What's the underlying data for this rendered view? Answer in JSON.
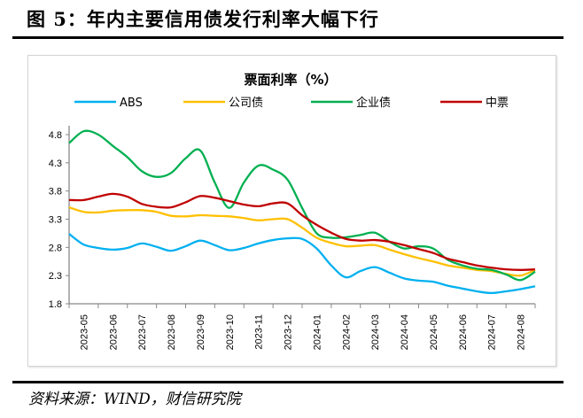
{
  "title": "图 5：年内主要信用债发行利率大幅下行",
  "source": "资料来源：WIND，财信研究院",
  "chart_data": {
    "type": "line",
    "title": "票面利率（%）",
    "xlabel": "",
    "ylabel": "",
    "categories": [
      "2023-05",
      "2023-06",
      "2023-07",
      "2023-08",
      "2023-09",
      "2023-10",
      "2023-11",
      "2023-12",
      "2024-01",
      "2024-02",
      "2024-03",
      "2024-04",
      "2024-05",
      "2024-06",
      "2024-07",
      "2024-08"
    ],
    "x": [
      "2023-05-01",
      "2023-05-16",
      "2023-06-01",
      "2023-06-16",
      "2023-07-01",
      "2023-07-16",
      "2023-08-01",
      "2023-08-16",
      "2023-09-01",
      "2023-09-16",
      "2023-10-01",
      "2023-10-16",
      "2023-11-01",
      "2023-11-16",
      "2023-12-01",
      "2023-12-16",
      "2024-01-01",
      "2024-01-16",
      "2024-02-01",
      "2024-02-16",
      "2024-03-01",
      "2024-03-16",
      "2024-04-01",
      "2024-04-16",
      "2024-05-01",
      "2024-05-16",
      "2024-06-01",
      "2024-06-16",
      "2024-07-01",
      "2024-07-16",
      "2024-08-01",
      "2024-08-16",
      "2024-09-01"
    ],
    "yticks": [
      "1.8",
      "2.3",
      "2.8",
      "3.3",
      "3.8",
      "4.3",
      "4.8"
    ],
    "ylim": [
      1.8,
      4.8
    ],
    "grid": false,
    "legend": "top",
    "series": [
      {
        "name": "ABS",
        "color": "#00B0F0",
        "values": [
          3.04,
          2.85,
          2.79,
          2.76,
          2.79,
          2.87,
          2.81,
          2.74,
          2.82,
          2.92,
          2.84,
          2.75,
          2.79,
          2.87,
          2.93,
          2.96,
          2.95,
          2.78,
          2.48,
          2.27,
          2.38,
          2.45,
          2.35,
          2.25,
          2.21,
          2.19,
          2.12,
          2.07,
          2.02,
          1.99,
          2.02,
          2.06,
          2.11
        ]
      },
      {
        "name": "公司债",
        "color": "#FFC000",
        "values": [
          3.51,
          3.43,
          3.42,
          3.45,
          3.46,
          3.46,
          3.43,
          3.36,
          3.35,
          3.37,
          3.36,
          3.35,
          3.32,
          3.28,
          3.3,
          3.3,
          3.15,
          2.97,
          2.88,
          2.82,
          2.83,
          2.84,
          2.76,
          2.68,
          2.61,
          2.55,
          2.48,
          2.44,
          2.4,
          2.38,
          2.33,
          2.3,
          2.4
        ]
      },
      {
        "name": "企业债",
        "color": "#00B050",
        "values": [
          4.65,
          4.86,
          4.8,
          4.6,
          4.4,
          4.15,
          4.05,
          4.12,
          4.38,
          4.52,
          3.95,
          3.5,
          3.95,
          4.25,
          4.18,
          4.0,
          3.5,
          3.05,
          2.97,
          2.98,
          3.02,
          3.06,
          2.9,
          2.78,
          2.82,
          2.78,
          2.58,
          2.48,
          2.42,
          2.4,
          2.32,
          2.22,
          2.37
        ]
      },
      {
        "name": "中票",
        "color": "#C00000",
        "values": [
          3.64,
          3.64,
          3.7,
          3.75,
          3.7,
          3.57,
          3.52,
          3.51,
          3.6,
          3.71,
          3.68,
          3.62,
          3.56,
          3.53,
          3.58,
          3.58,
          3.37,
          3.2,
          3.06,
          2.95,
          2.92,
          2.93,
          2.9,
          2.84,
          2.77,
          2.7,
          2.6,
          2.54,
          2.48,
          2.44,
          2.41,
          2.4,
          2.41
        ]
      }
    ]
  }
}
